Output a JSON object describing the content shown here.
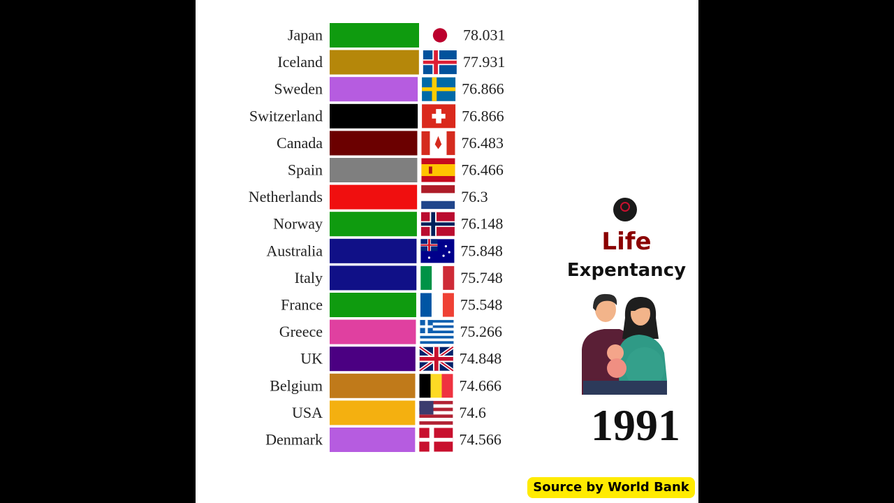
{
  "chart_data": {
    "type": "bar",
    "orientation": "horizontal",
    "title": "Life Expentancy",
    "year": "1991",
    "source": "Source by World Bank",
    "categories": [
      "Japan",
      "Iceland",
      "Sweden",
      "Switzerland",
      "Canada",
      "Spain",
      "Netherlands",
      "Norway",
      "Australia",
      "Italy",
      "France",
      "Greece",
      "UK",
      "Belgium",
      "USA",
      "Denmark"
    ],
    "values": [
      78.031,
      77.931,
      76.866,
      76.866,
      76.483,
      76.466,
      76.3,
      76.148,
      75.848,
      75.748,
      75.548,
      75.266,
      74.848,
      74.666,
      74.6,
      74.566
    ],
    "value_labels": [
      "78.031",
      "77.931",
      "76.866",
      "76.866",
      "76.483",
      "76.466",
      "76.3",
      "76.148",
      "75.848",
      "75.748",
      "75.548",
      "75.266",
      "74.848",
      "74.666",
      "74.6",
      "74.566"
    ],
    "bar_colors": [
      "#0f9b0f",
      "#b5870a",
      "#b65ce0",
      "#000000",
      "#6b0000",
      "#7f7f7f",
      "#f00f0f",
      "#0f9b0f",
      "#101087",
      "#101087",
      "#0f9b0f",
      "#e040a0",
      "#4b0082",
      "#c07a1a",
      "#f4b010",
      "#b65ce0"
    ],
    "flags": [
      "japan",
      "iceland",
      "sweden",
      "switzerland",
      "canada",
      "spain",
      "netherlands",
      "norway",
      "australia",
      "italy",
      "france",
      "greece",
      "uk",
      "belgium",
      "usa",
      "denmark"
    ],
    "xlim": [
      0,
      78.031
    ]
  },
  "header": {
    "title_line1": "Life",
    "title_line2": "Expentancy"
  },
  "year_label": "1991",
  "source_label": "Source by World Bank"
}
